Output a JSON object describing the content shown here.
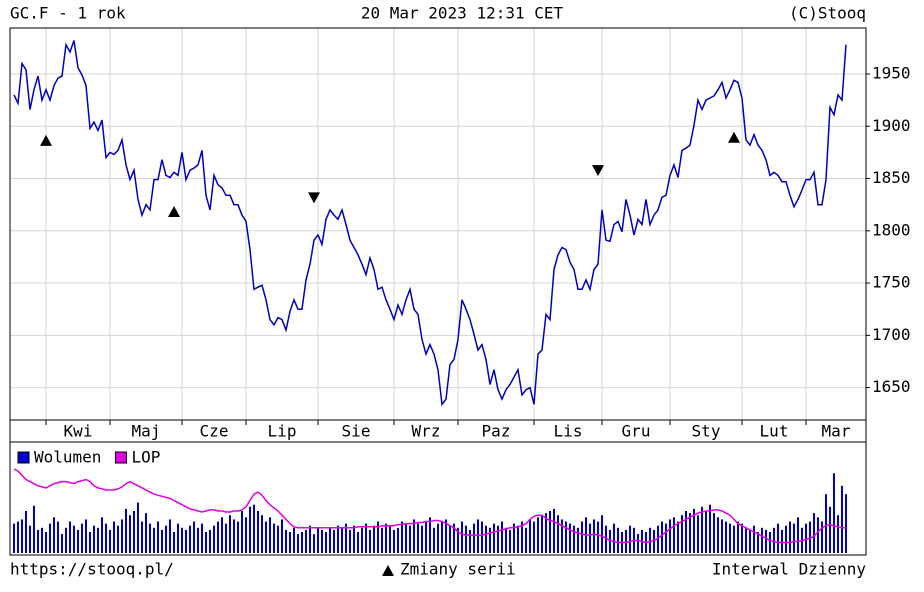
{
  "header": {
    "title": "GC.F - 1 rok",
    "timestamp": "20 Mar 2023 12:31 CET",
    "copyright": "(C)Stooq"
  },
  "footer": {
    "url": "https://stooq.pl/",
    "legend_note": "Zmiany serii",
    "interval": "Interwal Dzienny"
  },
  "chart_data": [
    {
      "type": "line",
      "color": "#0000c0",
      "grid": true,
      "categories": [
        null,
        null,
        null,
        null,
        null,
        null,
        null,
        null,
        "Kwi",
        null,
        null,
        null,
        null,
        null,
        null,
        null,
        null,
        null,
        null,
        null,
        null,
        null,
        null,
        null,
        "Maj",
        null,
        null,
        null,
        null,
        null,
        null,
        null,
        null,
        null,
        null,
        null,
        null,
        null,
        null,
        null,
        null,
        null,
        "Cze",
        null,
        null,
        null,
        null,
        null,
        null,
        null,
        null,
        null,
        null,
        null,
        null,
        null,
        null,
        null,
        "Lip",
        null,
        null,
        null,
        null,
        null,
        null,
        null,
        null,
        null,
        null,
        null,
        null,
        null,
        null,
        null,
        null,
        null,
        "Sie",
        null,
        null,
        null,
        null,
        null,
        null,
        null,
        null,
        null,
        null,
        null,
        null,
        null,
        null,
        null,
        null,
        null,
        null,
        "Wrz",
        null,
        null,
        null,
        null,
        null,
        null,
        null,
        null,
        null,
        null,
        null,
        null,
        null,
        null,
        null,
        "Paz",
        null,
        null,
        null,
        null,
        null,
        null,
        null,
        null,
        null,
        null,
        null,
        null,
        null,
        null,
        null,
        null,
        null,
        null,
        "Lis",
        null,
        null,
        null,
        null,
        null,
        null,
        null,
        null,
        null,
        null,
        null,
        null,
        null,
        null,
        null,
        null,
        "Gru",
        null,
        null,
        null,
        null,
        null,
        null,
        null,
        null,
        null,
        null,
        null,
        null,
        null,
        null,
        null,
        null,
        "Sty",
        null,
        null,
        null,
        null,
        null,
        null,
        null,
        null,
        null,
        null,
        null,
        null,
        null,
        null,
        null,
        null,
        null,
        "Lut",
        null,
        null,
        null,
        null,
        null,
        null,
        null,
        null,
        null,
        null,
        null,
        null,
        null,
        null,
        null,
        "Mar",
        null,
        null,
        null,
        null,
        null,
        null,
        null,
        null,
        null,
        null
      ],
      "values": [
        1930,
        1922,
        1960,
        1954,
        1916,
        1935,
        1948,
        1925,
        1935,
        1925,
        1939,
        1946,
        1948,
        1978,
        1971,
        1982,
        1956,
        1949,
        1939,
        1898,
        1904,
        1896,
        1906,
        1870,
        1875,
        1873,
        1877,
        1887,
        1863,
        1849,
        1858,
        1830,
        1815,
        1825,
        1820,
        1849,
        1849,
        1868,
        1853,
        1851,
        1856,
        1853,
        1875,
        1849,
        1858,
        1860,
        1863,
        1877,
        1834,
        1820,
        1853,
        1844,
        1841,
        1834,
        1834,
        1825,
        1825,
        1815,
        1809,
        1782,
        1744,
        1746,
        1748,
        1734,
        1715,
        1710,
        1717,
        1715,
        1705,
        1723,
        1734,
        1725,
        1725,
        1753,
        1768,
        1791,
        1796,
        1787,
        1811,
        1820,
        1815,
        1811,
        1820,
        1806,
        1791,
        1784,
        1777,
        1768,
        1758,
        1774,
        1763,
        1744,
        1746,
        1734,
        1725,
        1715,
        1729,
        1720,
        1734,
        1744,
        1725,
        1720,
        1696,
        1682,
        1691,
        1682,
        1667,
        1634,
        1639,
        1672,
        1677,
        1696,
        1734,
        1725,
        1715,
        1701,
        1686,
        1691,
        1677,
        1653,
        1667,
        1648,
        1639,
        1648,
        1653,
        1660,
        1667,
        1643,
        1648,
        1650,
        1634,
        1682,
        1686,
        1720,
        1715,
        1763,
        1777,
        1784,
        1782,
        1770,
        1763,
        1744,
        1744,
        1753,
        1744,
        1763,
        1768,
        1820,
        1791,
        1790,
        1806,
        1809,
        1799,
        1830,
        1815,
        1796,
        1811,
        1806,
        1830,
        1806,
        1815,
        1820,
        1832,
        1834,
        1853,
        1863,
        1851,
        1877,
        1879,
        1882,
        1901,
        1925,
        1916,
        1925,
        1927,
        1929,
        1935,
        1942,
        1927,
        1935,
        1944,
        1942,
        1927,
        1887,
        1882,
        1892,
        1882,
        1877,
        1868,
        1853,
        1856,
        1853,
        1847,
        1847,
        1834,
        1823,
        1830,
        1839,
        1849,
        1849,
        1856,
        1825,
        1825,
        1849,
        1918,
        1911,
        1930,
        1925,
        1978
      ],
      "ylim": [
        1619,
        1994
      ],
      "yticks": [
        1650,
        1700,
        1750,
        1800,
        1850,
        1900,
        1950
      ],
      "markers": [
        {
          "index": 8,
          "value": 1886,
          "direction": "up"
        },
        {
          "index": 40,
          "value": 1818,
          "direction": "up"
        },
        {
          "index": 75,
          "value": 1832,
          "direction": "down"
        },
        {
          "index": 146,
          "value": 1858,
          "direction": "down"
        },
        {
          "index": 180,
          "value": 1889,
          "direction": "up"
        }
      ]
    },
    {
      "type": "bar",
      "ylim": [
        0,
        100
      ],
      "series": [
        {
          "name": "Wolumen",
          "color": "#0000cc",
          "type": "bar",
          "values": [
            28,
            30,
            32,
            40,
            26,
            45,
            22,
            24,
            20,
            28,
            34,
            30,
            18,
            24,
            30,
            26,
            22,
            28,
            32,
            20,
            26,
            24,
            34,
            28,
            22,
            30,
            26,
            32,
            42,
            36,
            40,
            48,
            30,
            38,
            28,
            24,
            30,
            22,
            26,
            32,
            20,
            28,
            24,
            22,
            26,
            30,
            24,
            28,
            20,
            22,
            26,
            30,
            34,
            28,
            36,
            32,
            30,
            40,
            34,
            44,
            46,
            40,
            36,
            30,
            34,
            28,
            26,
            32,
            22,
            20,
            24,
            18,
            20,
            22,
            26,
            18,
            24,
            22,
            20,
            24,
            22,
            26,
            24,
            28,
            22,
            26,
            20,
            24,
            28,
            22,
            26,
            30,
            24,
            28,
            26,
            22,
            24,
            30,
            28,
            26,
            32,
            28,
            26,
            30,
            34,
            24,
            28,
            30,
            32,
            26,
            28,
            24,
            30,
            26,
            22,
            28,
            32,
            30,
            26,
            24,
            28,
            26,
            30,
            24,
            22,
            28,
            26,
            30,
            24,
            32,
            30,
            34,
            36,
            38,
            40,
            42,
            36,
            32,
            30,
            28,
            26,
            24,
            30,
            34,
            28,
            32,
            30,
            36,
            26,
            22,
            28,
            24,
            20,
            22,
            26,
            24,
            18,
            22,
            20,
            24,
            22,
            26,
            30,
            28,
            32,
            34,
            30,
            36,
            40,
            38,
            42,
            36,
            44,
            40,
            46,
            38,
            34,
            32,
            30,
            28,
            26,
            30,
            28,
            24,
            22,
            26,
            20,
            24,
            22,
            20,
            24,
            28,
            22,
            26,
            30,
            28,
            34,
            24,
            28,
            30,
            38,
            34,
            30,
            56,
            44,
            76,
            36,
            64,
            56
          ]
        },
        {
          "name": "LOP",
          "color": "#e000e0",
          "type": "line",
          "values": [
            80,
            78,
            74,
            70,
            68,
            66,
            64,
            63,
            62,
            64,
            66,
            67,
            68,
            68,
            67,
            66,
            68,
            69,
            70,
            68,
            64,
            62,
            61,
            60,
            60,
            60,
            61,
            63,
            66,
            68,
            66,
            64,
            62,
            60,
            58,
            56,
            55,
            54,
            53,
            52,
            50,
            48,
            46,
            44,
            42,
            41,
            40,
            39,
            40,
            41,
            41,
            40,
            40,
            39,
            39,
            40,
            40,
            41,
            44,
            50,
            56,
            58,
            55,
            50,
            46,
            43,
            40,
            36,
            32,
            28,
            25,
            24,
            24,
            24,
            24,
            24,
            24,
            24,
            24,
            24,
            24,
            24,
            24,
            24,
            24,
            24,
            25,
            25,
            25,
            25,
            25,
            25,
            26,
            26,
            26,
            26,
            27,
            27,
            28,
            28,
            28,
            29,
            29,
            30,
            30,
            31,
            31,
            30,
            28,
            26,
            24,
            20,
            18,
            17,
            17,
            17,
            17,
            17,
            18,
            19,
            20,
            21,
            22,
            23,
            24,
            24,
            25,
            26,
            28,
            32,
            35,
            36,
            36,
            33,
            31,
            30,
            28,
            26,
            24,
            22,
            20,
            19,
            18,
            17,
            17,
            18,
            17,
            16,
            14,
            12,
            11,
            10,
            10,
            10,
            11,
            12,
            12,
            11,
            10,
            11,
            12,
            14,
            17,
            20,
            23,
            26,
            28,
            30,
            32,
            34,
            36,
            38,
            39,
            40,
            40,
            41,
            41,
            40,
            38,
            36,
            32,
            28,
            26,
            24,
            22,
            20,
            18,
            16,
            14,
            12,
            11,
            10,
            10,
            10,
            10,
            11,
            11,
            12,
            13,
            14,
            16,
            20,
            24,
            26,
            27,
            26,
            25,
            24,
            24
          ]
        }
      ]
    }
  ]
}
